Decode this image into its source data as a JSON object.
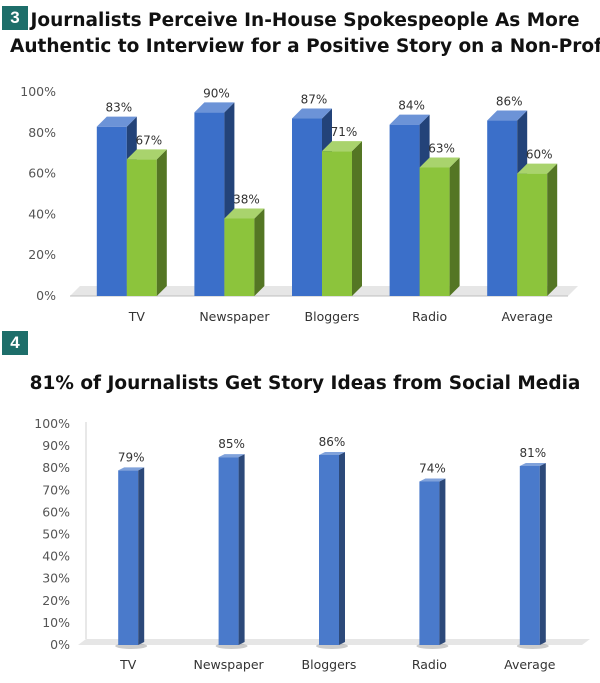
{
  "badges": {
    "chart3": "3",
    "chart4": "4"
  },
  "colors": {
    "blue": "#3b6fc9",
    "green": "#8cc43c",
    "blue4": "#4a7acb",
    "badge": "#1d6e6a"
  },
  "chart_data": [
    {
      "type": "bar",
      "title": "Journalists Perceive In-House Spokespeople As More Authentic to Interview for a Positive Story on a Non-Profit",
      "title_lines": [
        "Journalists Perceive In-House Spokespeople As More",
        "Authentic to Interview for a Positive Story on a Non-Profit"
      ],
      "categories": [
        "TV",
        "Newspaper",
        "Bloggers",
        "Radio",
        "Average"
      ],
      "series": [
        {
          "values": [
            83,
            90,
            87,
            84,
            86
          ],
          "labels": [
            "83%",
            "90%",
            "87%",
            "84%",
            "86%"
          ],
          "color": "#3b6fc9"
        },
        {
          "values": [
            67,
            38,
            71,
            63,
            60
          ],
          "labels": [
            "67%",
            "38%",
            "71%",
            "63%",
            "60%"
          ],
          "color": "#8cc43c"
        }
      ],
      "yticks": [
        "0%",
        "20%",
        "40%",
        "60%",
        "80%",
        "100%"
      ],
      "ylim": [
        0,
        100
      ],
      "style": "3d-clustered-column",
      "grid": false
    },
    {
      "type": "bar",
      "title": "81% of Journalists Get Story Ideas from Social Media",
      "categories": [
        "TV",
        "Newspaper",
        "Bloggers",
        "Radio",
        "Average"
      ],
      "series": [
        {
          "values": [
            79,
            85,
            86,
            74,
            81
          ],
          "labels": [
            "79%",
            "85%",
            "86%",
            "74%",
            "81%"
          ],
          "color": "#4a7acb"
        }
      ],
      "yticks": [
        "0%",
        "10%",
        "20%",
        "30%",
        "40%",
        "50%",
        "60%",
        "70%",
        "80%",
        "90%",
        "100%"
      ],
      "ylim": [
        0,
        100
      ],
      "style": "3d-column",
      "grid": false
    }
  ]
}
